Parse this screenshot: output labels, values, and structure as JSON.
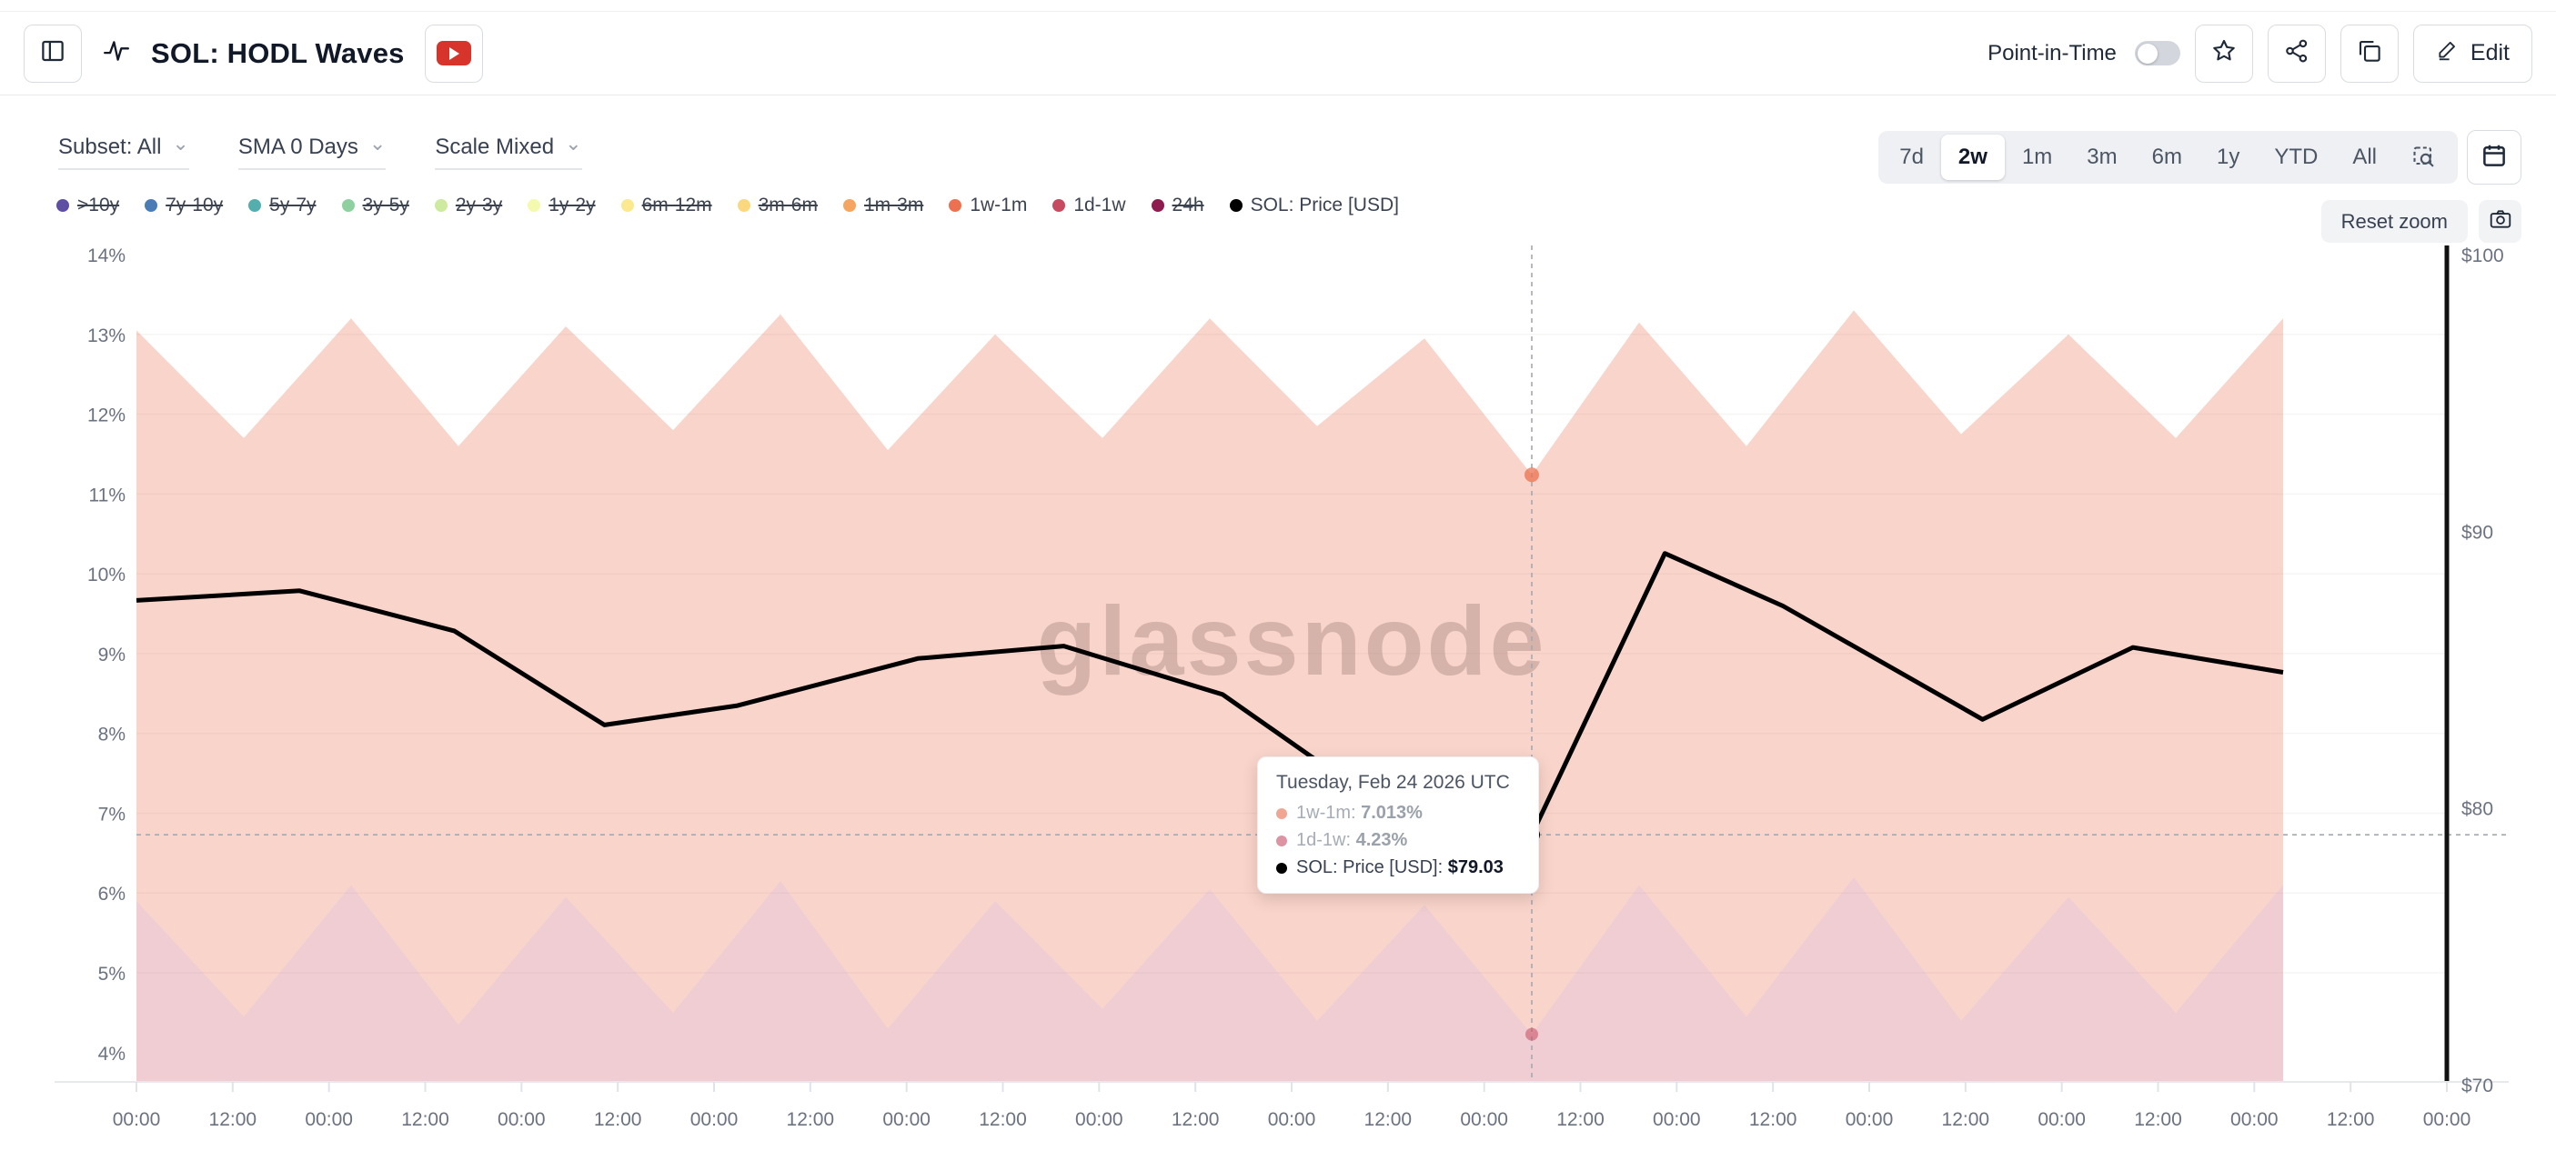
{
  "header": {
    "title": "SOL: HODL Waves",
    "point_in_time_label": "Point-in-Time",
    "point_in_time_on": false,
    "edit_label": "Edit"
  },
  "controls": {
    "subset_label": "Subset: All",
    "sma_label": "SMA 0 Days",
    "scale_label": "Scale Mixed"
  },
  "ranges": {
    "options": [
      "7d",
      "2w",
      "1m",
      "3m",
      "6m",
      "1y",
      "YTD",
      "All"
    ],
    "active": "2w"
  },
  "reset_zoom_label": "Reset zoom",
  "watermark": "glassnode",
  "legend": [
    {
      "label": ">10y",
      "color": "#5e4fa2",
      "active": false
    },
    {
      "label": "7y-10y",
      "color": "#4a7db5",
      "active": false
    },
    {
      "label": "5y-7y",
      "color": "#54aead",
      "active": false
    },
    {
      "label": "3y-5y",
      "color": "#8fd0a0",
      "active": false
    },
    {
      "label": "2y-3y",
      "color": "#cdea9f",
      "active": false
    },
    {
      "label": "1y-2y",
      "color": "#f4faad",
      "active": false
    },
    {
      "label": "6m-12m",
      "color": "#fce88f",
      "active": false
    },
    {
      "label": "3m-6m",
      "color": "#fbd87e",
      "active": false
    },
    {
      "label": "1m-3m",
      "color": "#f5a55f",
      "active": false
    },
    {
      "label": "1w-1m",
      "color": "#ec7150",
      "active": true
    },
    {
      "label": "1d-1w",
      "color": "#c64a60",
      "active": true
    },
    {
      "label": "24h",
      "color": "#8e1c4e",
      "active": false
    },
    {
      "label": "SOL: Price [USD]",
      "color": "#000000",
      "active": true
    }
  ],
  "tooltip": {
    "title": "Tuesday, Feb 24 2026 UTC",
    "rows": [
      {
        "label": "1w-1m:",
        "value": "7.013%",
        "color": "#f1a694",
        "dim": true
      },
      {
        "label": "1d-1w:",
        "value": "4.23%",
        "color": "#dd93a2",
        "dim": true
      },
      {
        "label": "SOL: Price [USD]:",
        "value": "$79.03",
        "color": "#000000",
        "dim": false
      }
    ]
  },
  "chart_data": {
    "type": "area",
    "title": "SOL: HODL Waves",
    "legend_position": "top-left",
    "grid": "faint-horizontal",
    "x_axis": {
      "tick_labels": [
        "00:00",
        "12:00",
        "00:00",
        "12:00",
        "00:00",
        "12:00",
        "00:00",
        "12:00",
        "00:00",
        "12:00",
        "00:00",
        "12:00",
        "00:00",
        "12:00",
        "00:00",
        "12:00",
        "00:00",
        "12:00",
        "00:00",
        "12:00",
        "00:00",
        "12:00",
        "00:00",
        "12:00",
        "00:00"
      ],
      "unit": "time-of-day, 12h steps"
    },
    "y_left": {
      "labels": [
        "14%",
        "13%",
        "12%",
        "11%",
        "10%",
        "9%",
        "8%",
        "7%",
        "6%",
        "5%",
        "4%"
      ],
      "min": 4,
      "max": 14,
      "unit": "%"
    },
    "y_right": {
      "labels": [
        "$100",
        "$90",
        "$80",
        "$70"
      ],
      "min": 70,
      "max": 100,
      "unit": "USD"
    },
    "series": [
      {
        "name": "1w-1m",
        "type": "area-stacked-top-edge",
        "color": "#ec7150",
        "fill_opacity": 0.3,
        "points_pct": [
          [
            0,
            13.05
          ],
          [
            0.5,
            11.7
          ],
          [
            1,
            13.2
          ],
          [
            1.5,
            11.6
          ],
          [
            2,
            13.1
          ],
          [
            2.5,
            11.8
          ],
          [
            3,
            13.25
          ],
          [
            3.5,
            11.55
          ],
          [
            4,
            13.0
          ],
          [
            4.5,
            11.7
          ],
          [
            5,
            13.2
          ],
          [
            5.5,
            11.85
          ],
          [
            6,
            12.95
          ],
          [
            6.5,
            11.24
          ],
          [
            7,
            13.15
          ],
          [
            7.5,
            11.6
          ],
          [
            8,
            13.3
          ],
          [
            8.5,
            11.75
          ],
          [
            9,
            13.0
          ],
          [
            9.5,
            11.7
          ],
          [
            10,
            13.2
          ]
        ]
      },
      {
        "name": "1d-1w",
        "type": "area-bottom-band-edge",
        "color": "#c64a60",
        "fill_opacity": 0.28,
        "points_pct": [
          [
            0,
            5.9
          ],
          [
            0.5,
            4.45
          ],
          [
            1,
            6.1
          ],
          [
            1.5,
            4.35
          ],
          [
            2,
            5.95
          ],
          [
            2.5,
            4.5
          ],
          [
            3,
            6.15
          ],
          [
            3.5,
            4.3
          ],
          [
            4,
            5.9
          ],
          [
            4.5,
            4.55
          ],
          [
            5,
            6.05
          ],
          [
            5.5,
            4.4
          ],
          [
            6,
            5.85
          ],
          [
            6.5,
            4.23
          ],
          [
            7,
            6.1
          ],
          [
            7.5,
            4.45
          ],
          [
            8,
            6.2
          ],
          [
            8.5,
            4.4
          ],
          [
            9,
            5.95
          ],
          [
            9.5,
            4.5
          ],
          [
            10,
            6.1
          ]
        ]
      },
      {
        "name": "SOL: Price [USD]",
        "type": "line",
        "color": "#000000",
        "points_usd": [
          [
            0,
            87.5
          ],
          [
            0.76,
            87.85
          ],
          [
            1.48,
            86.4
          ],
          [
            2.18,
            83.0
          ],
          [
            2.8,
            83.7
          ],
          [
            3.64,
            85.4
          ],
          [
            4.32,
            85.85
          ],
          [
            5.06,
            84.1
          ],
          [
            5.85,
            79.8
          ],
          [
            6.5,
            79.03
          ],
          [
            7.12,
            89.2
          ],
          [
            7.67,
            87.3
          ],
          [
            8.6,
            83.2
          ],
          [
            9.3,
            85.8
          ],
          [
            10,
            84.9
          ]
        ]
      }
    ],
    "crosshair": {
      "t": 6.5,
      "date": "Tuesday, Feb 24 2026 UTC",
      "price_usd": 79.03,
      "stacked_total_pct": 11.24,
      "bottom_band_pct": 4.23
    }
  }
}
